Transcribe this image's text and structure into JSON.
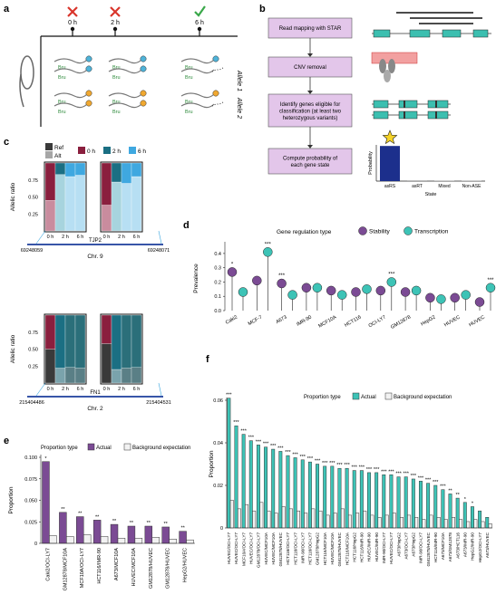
{
  "panels": {
    "a": {
      "label": "a",
      "timepoints": [
        {
          "label": "0 h",
          "mark": "cross"
        },
        {
          "label": "2 h",
          "mark": "cross"
        },
        {
          "label": "6 h",
          "mark": "check"
        }
      ],
      "allele_labels": [
        "Allele 1",
        "Allele 2"
      ],
      "bru_label": "Bru",
      "colors": {
        "allele1": "#4fb3d9",
        "allele2": "#f0a830",
        "cross": "#d9352b",
        "check": "#3aa84a"
      }
    },
    "b": {
      "label": "b",
      "steps": [
        "Read mapping with STAR",
        "CNV removal",
        "Identify genes eligible for classification (at least two heterozygous variants)",
        "Compute probability of each gene state"
      ],
      "prob_chart": {
        "ylabel": "Probability",
        "xlabel": "State",
        "categories": [
          "asRS",
          "asRT",
          "Mixed",
          "Non-ASE"
        ],
        "values": [
          0.97,
          0.02,
          0.01,
          0.01
        ],
        "ylim": [
          0,
          1
        ]
      },
      "colors": {
        "box": "#e3c6ea",
        "exon": "#3cbfb0",
        "dark_bar": "#1c2f8c",
        "star": "#f5d327"
      }
    },
    "c": {
      "label": "c",
      "legend": [
        {
          "label": "Ref",
          "color": "#3a3a3a"
        },
        {
          "label": "Alt",
          "color": "#a6a6a6"
        },
        {
          "label": "0 h",
          "color": "#8a1f3e"
        },
        {
          "label": "2 h",
          "color": "#1b6f83"
        },
        {
          "label": "6 h",
          "color": "#3fa8e0"
        }
      ],
      "ylabel": "Allelic ratio",
      "yticks": [
        "0.75",
        "0.50",
        "0.25"
      ],
      "xticks": [
        "0 h",
        "2 h",
        "6 h"
      ],
      "top": {
        "gene": "TJP2",
        "chrom": "Chr. 9",
        "positions": [
          "69248059",
          "69248071"
        ],
        "variants": [
          {
            "ref": [
              0.45,
              0.83,
              0.8,
              0.82
            ],
            "palette": "tjp2"
          },
          {
            "ref": [
              0.38,
              0.72,
              0.7,
              0.8
            ],
            "palette": "tjp2"
          }
        ]
      },
      "bottom": {
        "gene": "FN1",
        "chrom": "Chr. 2",
        "positions": [
          "215404486",
          "215404531"
        ],
        "variants": [
          {
            "ref": [
              0.5,
              0.22,
              0.23,
              0.22
            ],
            "palette": "fn1"
          },
          {
            "ref": [
              0.58,
              0.2,
              0.22,
              0.23
            ],
            "palette": "fn1"
          }
        ]
      }
    },
    "d": {
      "label": "d",
      "chart_data": {
        "type": "scatter",
        "title": "Gene regulation type",
        "ylabel": "Prevalence",
        "ylim": [
          0,
          0.45
        ],
        "yticks": [
          0.0,
          0.1,
          0.2,
          0.3,
          0.4
        ],
        "categories": [
          "Caki2",
          "MCF-7",
          "A673",
          "IMR-90",
          "MCF10A",
          "HCT116",
          "OCI-LY7",
          "GM12878",
          "HepG2",
          "HUVEC",
          "HUVEC"
        ],
        "series": [
          {
            "name": "Stability",
            "color": "#7b4b94",
            "values": [
              0.27,
              0.21,
              0.19,
              0.16,
              0.14,
              0.13,
              0.14,
              0.13,
              0.09,
              0.09,
              0.06
            ]
          },
          {
            "name": "Transcription",
            "color": "#3dc3b6",
            "values": [
              0.13,
              0.41,
              0.11,
              0.16,
              0.11,
              0.15,
              0.2,
              0.14,
              0.08,
              0.11,
              0.16
            ]
          }
        ],
        "stars": [
          {
            "index": 0,
            "series": 0,
            "text": "*"
          },
          {
            "index": 1,
            "series": 1,
            "text": "***"
          },
          {
            "index": 2,
            "series": 0,
            "text": "***"
          },
          {
            "index": 6,
            "series": 1,
            "text": "***"
          },
          {
            "index": 10,
            "series": 1,
            "text": "***"
          }
        ]
      }
    },
    "e": {
      "label": "e",
      "chart_data": {
        "type": "bar",
        "legend_title": "Proportion type",
        "ylabel": "Proportion",
        "ylim": [
          0,
          0.1
        ],
        "yticks": [
          0.0,
          0.025,
          0.05,
          0.075,
          0.1
        ],
        "ytick_labels": [
          "0",
          "0.025",
          "0.050",
          "0.075",
          "0.100"
        ],
        "categories": [
          "Caki2/OCI-LY7",
          "GM12878/MCF10A",
          "MCF10A/OCI-LY7",
          "HCT116/IMR-90",
          "A673/MCF10A",
          "HUVEC/MCF10A",
          "GM12878/HUVEC",
          "GM12878/HUVEC",
          "HepG2/HUVEC"
        ],
        "series": [
          {
            "name": "Actual",
            "color": "#7b4b94",
            "values": [
              0.095,
              0.036,
              0.031,
              0.027,
              0.022,
              0.02,
              0.02,
              0.019,
              0.014
            ]
          },
          {
            "name": "Background expectation",
            "color": "#f2f2f2",
            "values": [
              0.009,
              0.008,
              0.01,
              0.008,
              0.006,
              0.006,
              0.007,
              0.005,
              0.004
            ]
          }
        ],
        "stars": [
          "*",
          "**",
          "**",
          "**",
          "**",
          "**",
          "**",
          "**",
          "**"
        ]
      }
    },
    "f": {
      "label": "f",
      "chart_data": {
        "type": "bar",
        "legend_title": "Proportion type",
        "ylabel": "Proportion",
        "ylim": [
          0,
          0.06
        ],
        "yticks": [
          0.0,
          0.02,
          0.04,
          0.06
        ],
        "ytick_labels": [
          "0",
          "0.02",
          "0.04",
          "0.06"
        ],
        "categories": [
          "HUVEC/OCI-LY7",
          "HUVEC/OCI-LY7",
          "MCF10A/OCI-LY7",
          "HUVEC/OCI-LY7",
          "GM12878/OCI-LY7",
          "HUVEC/MCF10A",
          "HUVEC/MCF10A",
          "GM12878/HUVEC",
          "HCT116/OCI-LY7",
          "HCT116/OCI-LY7",
          "IMR-90/OCI-LY7",
          "HCT116/OCI-LY7",
          "GM12878/HepG2",
          "HCT116/MCF10A",
          "HUVEC/MCF10A",
          "GM12878/HUVEC",
          "HCT116/MCF10A",
          "HCT116/HepG2",
          "HCT116/IMR-90",
          "HUVEC/IMR-90",
          "HUVEC/IMR-90",
          "IMR-90/OCI-LY7",
          "HUVEC/OCI-LY7",
          "A673/HepG2",
          "A673/OCI-LY7",
          "A673/HepG2",
          "IMR-90/OCI-LY7",
          "GM12878/HUVEC",
          "HCT116/IMR-90",
          "A673/MCF10A",
          "A673/GM12878",
          "A673/HCT116",
          "A673/IMR-90",
          "HepG2/IMR-90",
          "HepG2/OCI-LY7",
          "A673/HUVEC"
        ],
        "series": [
          {
            "name": "Actual",
            "color": "#3dc3b6",
            "values": [
              0.061,
              0.048,
              0.044,
              0.041,
              0.039,
              0.038,
              0.037,
              0.036,
              0.034,
              0.033,
              0.032,
              0.031,
              0.03,
              0.029,
              0.029,
              0.028,
              0.028,
              0.027,
              0.027,
              0.026,
              0.026,
              0.025,
              0.025,
              0.024,
              0.024,
              0.023,
              0.022,
              0.021,
              0.02,
              0.018,
              0.016,
              0.014,
              0.012,
              0.01,
              0.008,
              0.005
            ]
          },
          {
            "name": "Background expectation",
            "color": "#f2f2f2",
            "values": [
              0.013,
              0.009,
              0.011,
              0.008,
              0.012,
              0.008,
              0.007,
              0.01,
              0.009,
              0.008,
              0.007,
              0.009,
              0.008,
              0.006,
              0.007,
              0.009,
              0.006,
              0.007,
              0.008,
              0.006,
              0.005,
              0.006,
              0.007,
              0.005,
              0.006,
              0.005,
              0.004,
              0.006,
              0.005,
              0.004,
              0.005,
              0.004,
              0.003,
              0.004,
              0.003,
              0.002
            ]
          }
        ],
        "stars": [
          "***",
          "***",
          "***",
          "***",
          "***",
          "***",
          "***",
          "***",
          "***",
          "***",
          "***",
          "***",
          "***",
          "***",
          "***",
          "***",
          "***",
          "***",
          "***",
          "***",
          "***",
          "***",
          "***",
          "***",
          "***",
          "***",
          "***",
          "***",
          "***",
          "***",
          "**",
          "**",
          "*",
          "*",
          "",
          ""
        ]
      }
    }
  }
}
